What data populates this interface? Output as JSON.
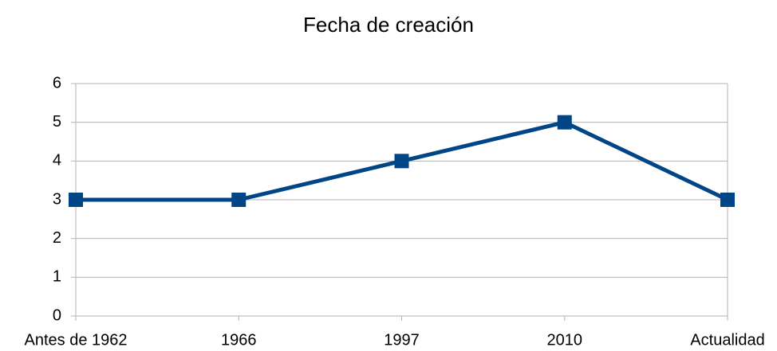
{
  "chart_data": {
    "type": "line",
    "title": "Fecha de creación",
    "categories": [
      "Antes de 1962",
      "1966",
      "1997",
      "2010",
      "Actualidad"
    ],
    "series": [
      {
        "name": null,
        "color": "#004586",
        "values": [
          3,
          3,
          4,
          5,
          3
        ]
      }
    ],
    "ylim": [
      0,
      6
    ],
    "yticks": [
      0,
      1,
      2,
      3,
      4,
      5,
      6
    ],
    "grid": true
  }
}
